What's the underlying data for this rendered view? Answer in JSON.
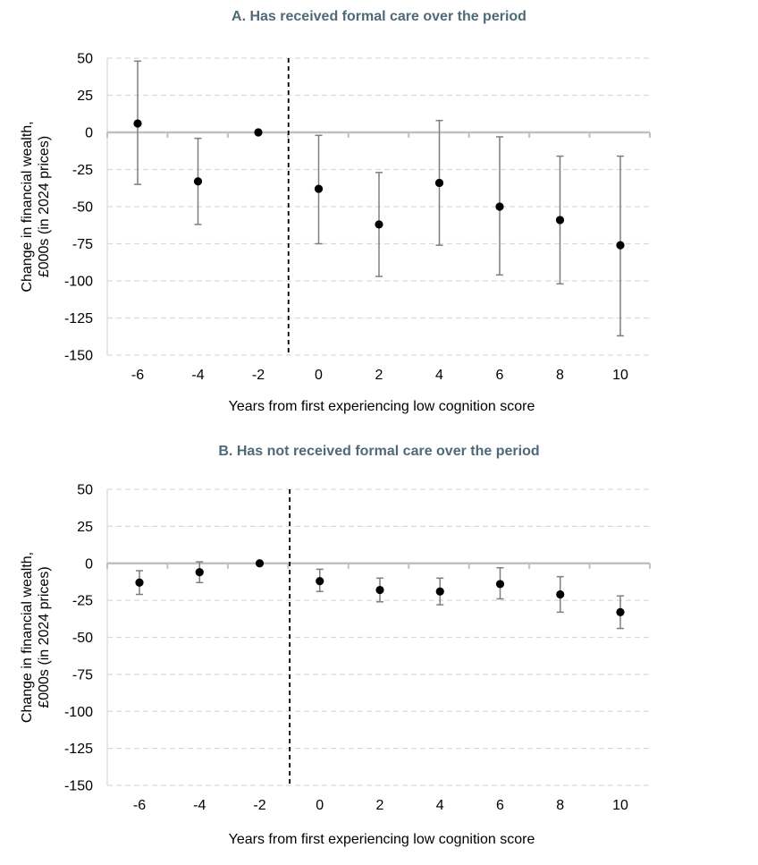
{
  "chart_data": [
    {
      "type": "scatter",
      "title": "A. Has received formal care over the period",
      "xlabel": "Years from first experiencing low cognition score",
      "ylabel": [
        "Change in financial wealth,",
        "£000s (in 2024 prices)"
      ],
      "x_ticks": [
        "-6",
        "-4",
        "-2",
        "0",
        "2",
        "4",
        "6",
        "8",
        "10"
      ],
      "y_ticks": [
        "50",
        "25",
        "0",
        "-25",
        "-50",
        "-75",
        "-100",
        "-125",
        "-150"
      ],
      "ylim": [
        -150,
        50
      ],
      "grid": "horizontal dashed",
      "reference_line_x": -1,
      "points": [
        {
          "x": -6,
          "y": 6,
          "lo": -35,
          "hi": 48
        },
        {
          "x": -4,
          "y": -33,
          "lo": -62,
          "hi": -4
        },
        {
          "x": -2,
          "y": 0
        },
        {
          "x": 0,
          "y": -38,
          "lo": -75,
          "hi": -2
        },
        {
          "x": 2,
          "y": -62,
          "lo": -97,
          "hi": -27
        },
        {
          "x": 4,
          "y": -34,
          "lo": -76,
          "hi": 8
        },
        {
          "x": 6,
          "y": -50,
          "lo": -96,
          "hi": -3
        },
        {
          "x": 8,
          "y": -59,
          "lo": -102,
          "hi": -16
        },
        {
          "x": 10,
          "y": -76,
          "lo": -137,
          "hi": -16
        }
      ],
      "colors": {
        "point": "#000000",
        "errorbar": "#7f7f7f",
        "zero_line": "#c0c0c0",
        "grid": "#d9d9d9",
        "title": "#4e6a78"
      }
    },
    {
      "type": "scatter",
      "title": "B. Has not received formal care over the period",
      "xlabel": "Years from first experiencing low cognition score",
      "ylabel": [
        "Change in financial wealth,",
        "£000s (in 2024 prices)"
      ],
      "x_ticks": [
        "-6",
        "-4",
        "-2",
        "0",
        "2",
        "4",
        "6",
        "8",
        "10"
      ],
      "y_ticks": [
        "50",
        "25",
        "0",
        "-25",
        "-50",
        "-75",
        "-100",
        "-125",
        "-150"
      ],
      "ylim": [
        -150,
        50
      ],
      "grid": "horizontal dashed",
      "reference_line_x": -1,
      "points": [
        {
          "x": -6,
          "y": -13,
          "lo": -21,
          "hi": -5
        },
        {
          "x": -4,
          "y": -6,
          "lo": -13,
          "hi": 1
        },
        {
          "x": -2,
          "y": 0
        },
        {
          "x": 0,
          "y": -12,
          "lo": -19,
          "hi": -4
        },
        {
          "x": 2,
          "y": -18,
          "lo": -26,
          "hi": -10
        },
        {
          "x": 4,
          "y": -19,
          "lo": -28,
          "hi": -10
        },
        {
          "x": 6,
          "y": -14,
          "lo": -24,
          "hi": -3
        },
        {
          "x": 8,
          "y": -21,
          "lo": -33,
          "hi": -9
        },
        {
          "x": 10,
          "y": -33,
          "lo": -44,
          "hi": -22
        }
      ],
      "colors": {
        "point": "#000000",
        "errorbar": "#7f7f7f",
        "zero_line": "#c0c0c0",
        "grid": "#d9d9d9",
        "title": "#4e6a78"
      }
    }
  ]
}
